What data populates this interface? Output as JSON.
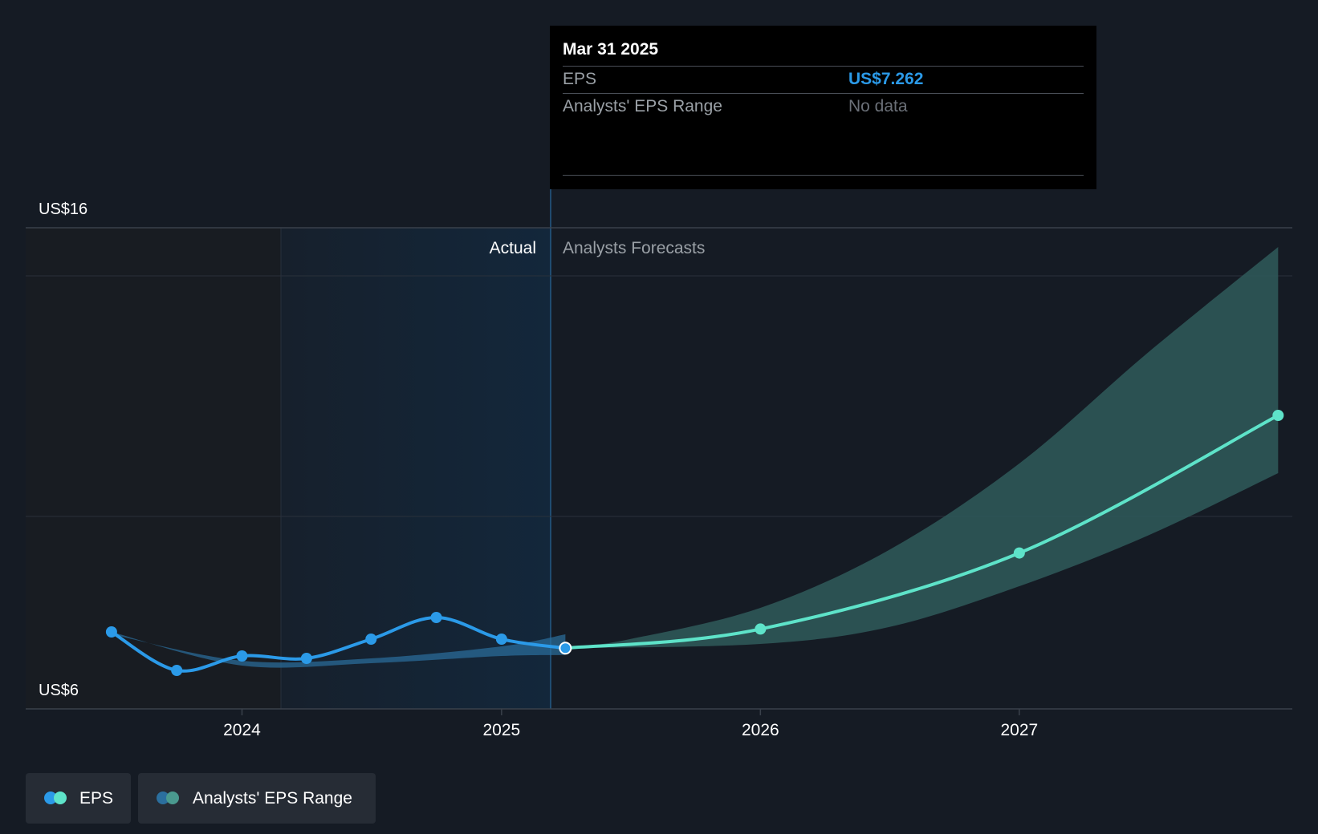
{
  "chart_data": {
    "type": "line",
    "y_axis": {
      "min": 6,
      "max": 16,
      "top_label": "US$16",
      "bottom_label": "US$6"
    },
    "x_axis": {
      "tick_labels": [
        "2024",
        "2025",
        "2026",
        "2027"
      ]
    },
    "regions": {
      "actual_label": "Actual",
      "forecast_label": "Analysts Forecasts"
    },
    "series": [
      {
        "name": "EPS",
        "kind": "actual",
        "color": "#2b9ae8",
        "points": [
          {
            "x": "2023-06-30",
            "y": 7.6
          },
          {
            "x": "2023-09-30",
            "y": 6.8
          },
          {
            "x": "2023-12-31",
            "y": 7.1
          },
          {
            "x": "2024-03-31",
            "y": 7.05
          },
          {
            "x": "2024-06-30",
            "y": 7.45
          },
          {
            "x": "2024-09-30",
            "y": 7.9
          },
          {
            "x": "2024-12-31",
            "y": 7.45
          },
          {
            "x": "2025-03-31",
            "y": 7.262
          }
        ]
      },
      {
        "name": "EPS",
        "kind": "forecast",
        "color": "#5ee3c9",
        "points": [
          {
            "x": "2025-03-31",
            "y": 7.262
          },
          {
            "x": "2025-12-31",
            "y": 7.66
          },
          {
            "x": "2026-12-31",
            "y": 9.24
          },
          {
            "x": "2027-12-31",
            "y": 12.1
          }
        ]
      }
    ],
    "range_bands": [
      {
        "name": "Analysts' EPS Range",
        "kind": "past",
        "color": "#2b6f9e",
        "upper": [
          {
            "x": "2023-06-30",
            "y": 7.55
          },
          {
            "x": "2023-12-31",
            "y": 7.0
          },
          {
            "x": "2024-06-30",
            "y": 7.05
          },
          {
            "x": "2024-12-31",
            "y": 7.3
          },
          {
            "x": "2025-03-31",
            "y": 7.55
          }
        ],
        "lower": [
          {
            "x": "2023-06-30",
            "y": 7.6
          },
          {
            "x": "2023-12-31",
            "y": 6.9
          },
          {
            "x": "2024-06-30",
            "y": 6.95
          },
          {
            "x": "2024-12-31",
            "y": 7.1
          },
          {
            "x": "2025-03-31",
            "y": 7.12
          }
        ]
      },
      {
        "name": "Analysts' EPS Range",
        "kind": "forecast",
        "color": "#2f5b5a",
        "upper": [
          {
            "x": "2025-03-31",
            "y": 7.262
          },
          {
            "x": "2025-06-30",
            "y": 7.45
          },
          {
            "x": "2025-12-31",
            "y": 8.1
          },
          {
            "x": "2026-06-30",
            "y": 9.3
          },
          {
            "x": "2026-12-31",
            "y": 11.1
          },
          {
            "x": "2027-06-30",
            "y": 13.4
          },
          {
            "x": "2027-12-31",
            "y": 15.6
          }
        ],
        "lower": [
          {
            "x": "2025-03-31",
            "y": 7.262
          },
          {
            "x": "2025-12-31",
            "y": 7.35
          },
          {
            "x": "2026-06-30",
            "y": 7.7
          },
          {
            "x": "2026-12-31",
            "y": 8.55
          },
          {
            "x": "2027-06-30",
            "y": 9.6
          },
          {
            "x": "2027-12-31",
            "y": 10.9
          }
        ]
      }
    ],
    "gridlines": [
      15,
      10
    ]
  },
  "tooltip": {
    "date": "Mar 31 2025",
    "eps_label": "EPS",
    "eps_value": "US$7.262",
    "range_label": "Analysts' EPS Range",
    "range_value": "No data"
  },
  "legend": [
    {
      "label": "EPS",
      "colors": [
        "#2b9ae8",
        "#5ee3c9"
      ]
    },
    {
      "label": "Analysts' EPS Range",
      "colors": [
        "#2b6f9e",
        "#4a9a8f"
      ]
    }
  ]
}
